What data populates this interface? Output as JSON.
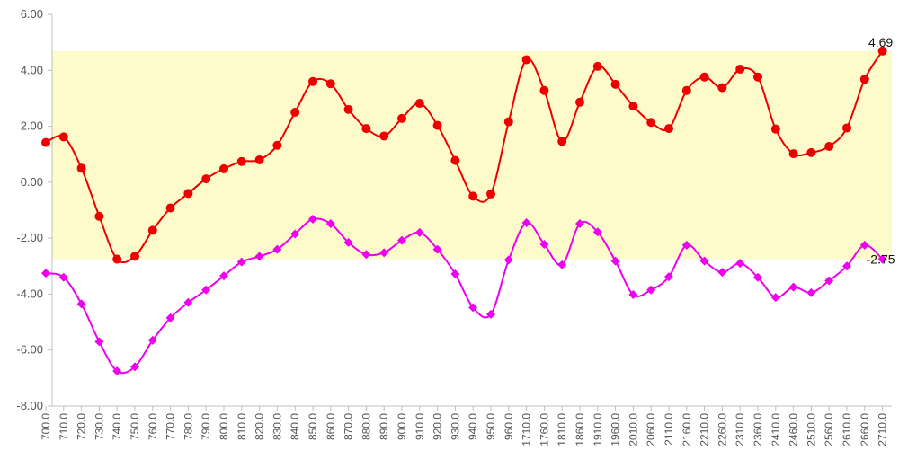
{
  "chart_data": {
    "type": "line",
    "categories": [
      "700.0",
      "710.0",
      "720.0",
      "730.0",
      "740.0",
      "750.0",
      "760.0",
      "770.0",
      "780.0",
      "790.0",
      "800.0",
      "810.0",
      "820.0",
      "830.0",
      "840.0",
      "850.0",
      "860.0",
      "870.0",
      "880.0",
      "890.0",
      "900.0",
      "910.0",
      "920.0",
      "930.0",
      "940.0",
      "950.0",
      "960.0",
      "1710.0",
      "1760.0",
      "1810.0",
      "1860.0",
      "1910.0",
      "1960.0",
      "2010.0",
      "2060.0",
      "2110.0",
      "2160.0",
      "2210.0",
      "2260.0",
      "2310.0",
      "2360.0",
      "2410.0",
      "2460.0",
      "2510.0",
      "2560.0",
      "2610.0",
      "2660.0",
      "2710.0"
    ],
    "ylim": [
      -8,
      6
    ],
    "ytick_labels": [
      "-8.00",
      "-6.00",
      "-4.00",
      "-2.00",
      "0.00",
      "2.00",
      "4.00",
      "6.00"
    ],
    "band": {
      "from": -2.75,
      "to": 4.69,
      "color": "#fdfbc9"
    },
    "grid": false,
    "legend": "none",
    "series": [
      {
        "color": "#ee0000",
        "marker": "circle",
        "values": [
          1.42,
          1.62,
          0.5,
          -1.22,
          -2.75,
          -2.65,
          -1.72,
          -0.92,
          -0.4,
          0.12,
          0.48,
          0.74,
          0.8,
          1.32,
          2.5,
          3.6,
          3.52,
          2.6,
          1.92,
          1.65,
          2.28,
          2.82,
          2.03,
          0.78,
          -0.5,
          -0.42,
          2.16,
          4.38,
          3.28,
          1.46,
          2.86,
          4.14,
          3.5,
          2.72,
          2.14,
          1.92,
          3.28,
          3.76,
          3.38,
          4.04,
          3.76,
          1.9,
          1.02,
          1.06,
          1.28,
          1.94,
          3.68,
          4.69
        ],
        "end_label": "4.69"
      },
      {
        "color": "#ee00ee",
        "marker": "diamond",
        "values": [
          -3.25,
          -3.4,
          -4.35,
          -5.7,
          -6.75,
          -6.6,
          -5.65,
          -4.85,
          -4.3,
          -3.85,
          -3.35,
          -2.85,
          -2.65,
          -2.4,
          -1.85,
          -1.32,
          -1.48,
          -2.15,
          -2.58,
          -2.52,
          -2.08,
          -1.8,
          -2.4,
          -3.28,
          -4.48,
          -4.72,
          -2.78,
          -1.45,
          -2.22,
          -2.95,
          -1.48,
          -1.78,
          -2.82,
          -4.02,
          -3.85,
          -3.38,
          -2.25,
          -2.82,
          -3.22,
          -2.9,
          -3.4,
          -4.12,
          -3.75,
          -3.95,
          -3.52,
          -3.0,
          -2.25,
          -2.75
        ],
        "end_label": "-2.75"
      }
    ]
  }
}
